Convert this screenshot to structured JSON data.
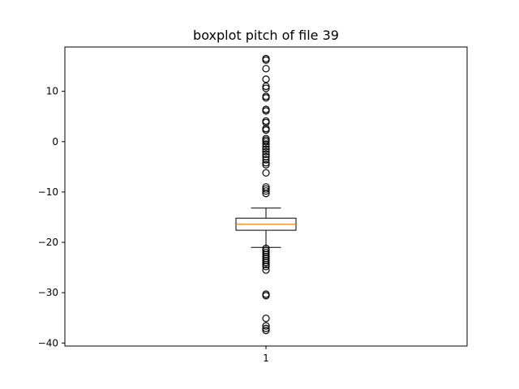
{
  "chart_data": {
    "type": "boxplot",
    "title": "boxplot pitch of file 39",
    "xlabel": "",
    "ylabel": "",
    "categories": [
      "1"
    ],
    "ylim": [
      -40.6,
      18.8
    ],
    "yticks": [
      -40,
      -30,
      -20,
      -10,
      0,
      10
    ],
    "ytick_labels": [
      "−40",
      "−30",
      "−20",
      "−10",
      "0",
      "10"
    ],
    "grid": false,
    "box": {
      "whisker_low": -21.0,
      "q1": -17.6,
      "median": -16.4,
      "q3": -15.2,
      "whisker_high": -13.2
    },
    "fliers": [
      16.5,
      16.2,
      14.5,
      12.4,
      11.0,
      10.6,
      9.0,
      8.7,
      6.4,
      6.1,
      4.1,
      3.8,
      2.6,
      2.3,
      0.6,
      0.3,
      0.0,
      -0.5,
      -1.0,
      -1.5,
      -2.0,
      -2.5,
      -3.0,
      -3.6,
      -4.2,
      -4.6,
      -6.2,
      -9.0,
      -9.4,
      -9.8,
      -10.3,
      -21.2,
      -21.6,
      -22.0,
      -22.4,
      -22.8,
      -23.2,
      -23.6,
      -24.0,
      -24.4,
      -24.8,
      -25.5,
      -30.3,
      -30.6,
      -35.1,
      -36.6,
      -37.1,
      -37.5
    ],
    "colors": {
      "median": "#ff7f0e",
      "box": "#000000"
    }
  }
}
